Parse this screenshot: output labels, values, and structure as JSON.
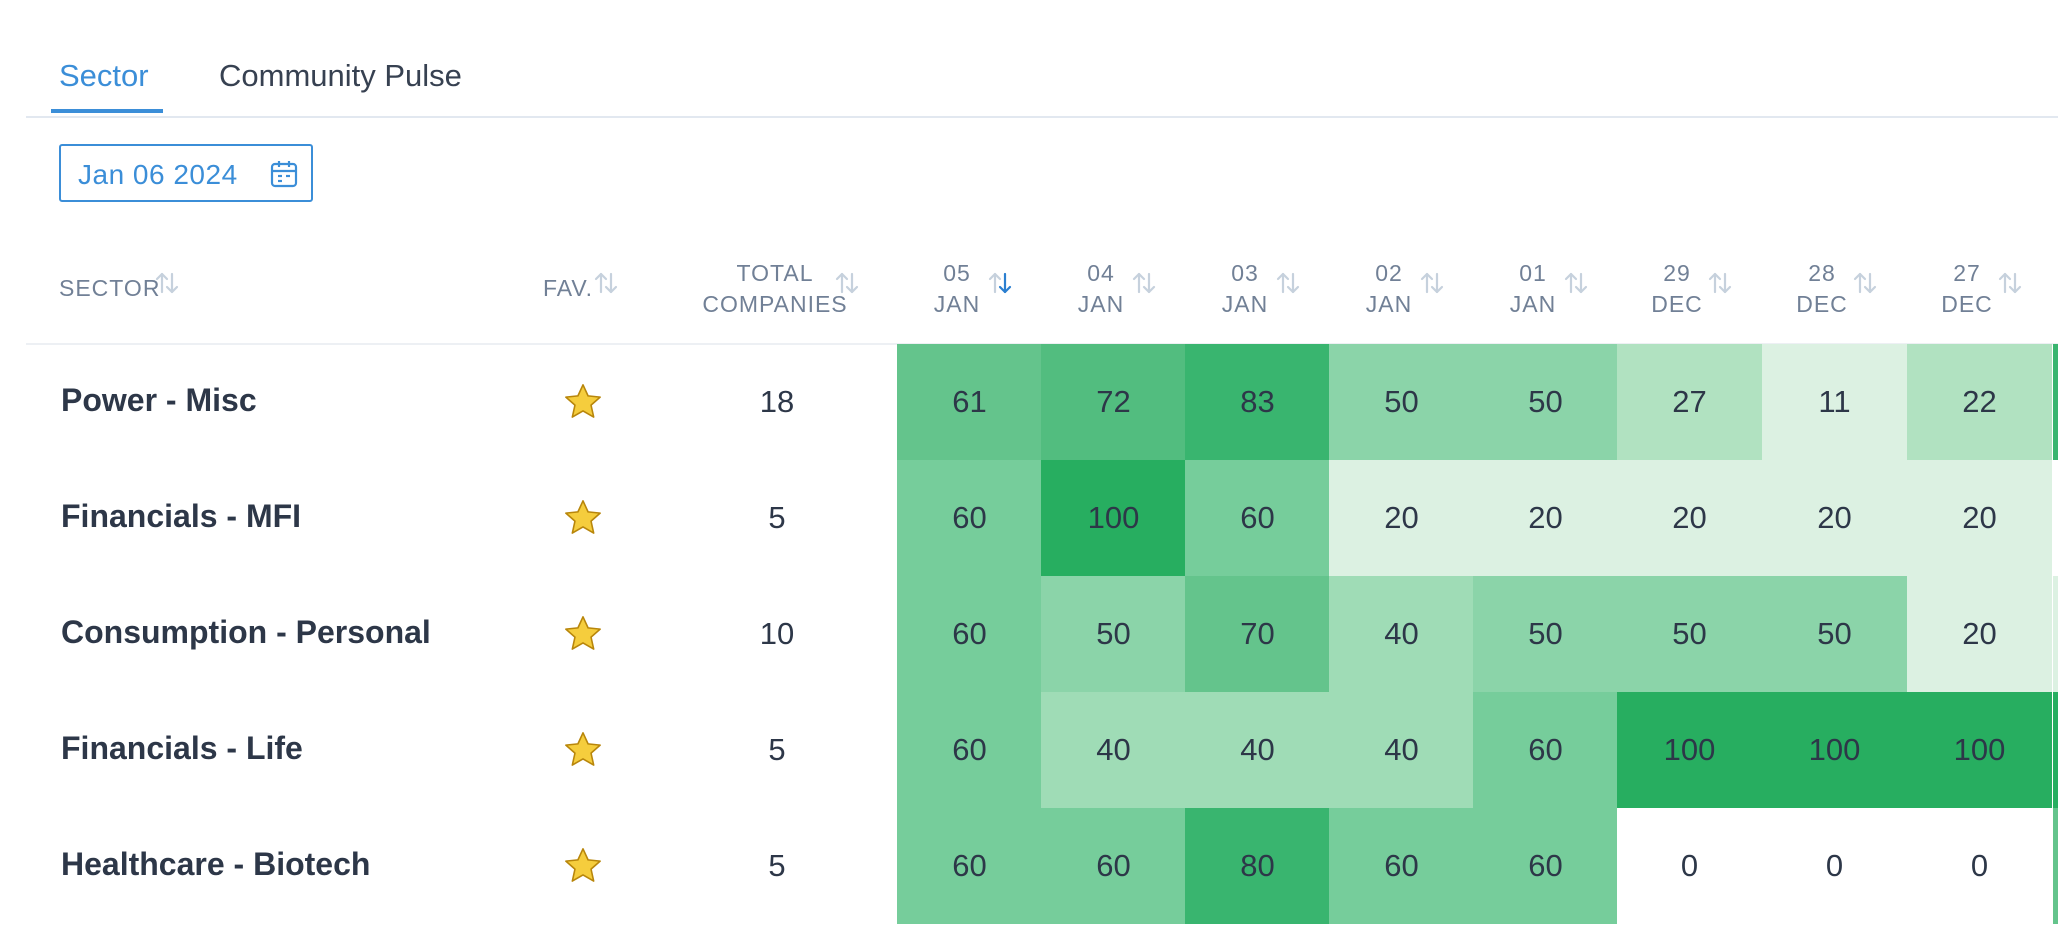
{
  "tabs": [
    {
      "label": "Sector",
      "active": true
    },
    {
      "label": "Community Pulse",
      "active": false
    }
  ],
  "date_picker": {
    "value": "Jan 06 2024",
    "icon": "calendar-icon"
  },
  "table": {
    "headers": {
      "sector": "SECTOR",
      "fav": "FAV.",
      "total_line1": "TOTAL",
      "total_line2": "COMPANIES",
      "dates": [
        {
          "day": "05",
          "month": "JAN",
          "sorted": true
        },
        {
          "day": "04",
          "month": "JAN",
          "sorted": false
        },
        {
          "day": "03",
          "month": "JAN",
          "sorted": false
        },
        {
          "day": "02",
          "month": "JAN",
          "sorted": false
        },
        {
          "day": "01",
          "month": "JAN",
          "sorted": false
        },
        {
          "day": "29",
          "month": "DEC",
          "sorted": false
        },
        {
          "day": "28",
          "month": "DEC",
          "sorted": false
        },
        {
          "day": "27",
          "month": "DEC",
          "sorted": false
        }
      ]
    },
    "rows": [
      {
        "sector": "Power - Misc",
        "fav": true,
        "total": "18",
        "values": [
          "61",
          "72",
          "83",
          "50",
          "50",
          "27",
          "11",
          "22"
        ]
      },
      {
        "sector": "Financials - MFI",
        "fav": true,
        "total": "5",
        "values": [
          "60",
          "100",
          "60",
          "20",
          "20",
          "20",
          "20",
          "20"
        ]
      },
      {
        "sector": "Consumption - Personal",
        "fav": true,
        "total": "10",
        "values": [
          "60",
          "50",
          "70",
          "40",
          "50",
          "50",
          "50",
          "20"
        ]
      },
      {
        "sector": "Financials - Life",
        "fav": true,
        "total": "5",
        "values": [
          "60",
          "40",
          "40",
          "40",
          "60",
          "100",
          "100",
          "100"
        ]
      },
      {
        "sector": "Healthcare - Biotech",
        "fav": true,
        "total": "5",
        "values": [
          "60",
          "60",
          "80",
          "60",
          "60",
          "0",
          "0",
          "0"
        ]
      }
    ]
  },
  "colors": {
    "accent": "#3b8ed8",
    "heat_scale": [
      "#ffffff",
      "#dcf1e2",
      "#b1e2c1",
      "#9fdcb6",
      "#8bd4a9",
      "#76cd9b",
      "#64c48c",
      "#52bd7f",
      "#39b56f",
      "#27ae60"
    ],
    "star": "#f5cd3d"
  }
}
